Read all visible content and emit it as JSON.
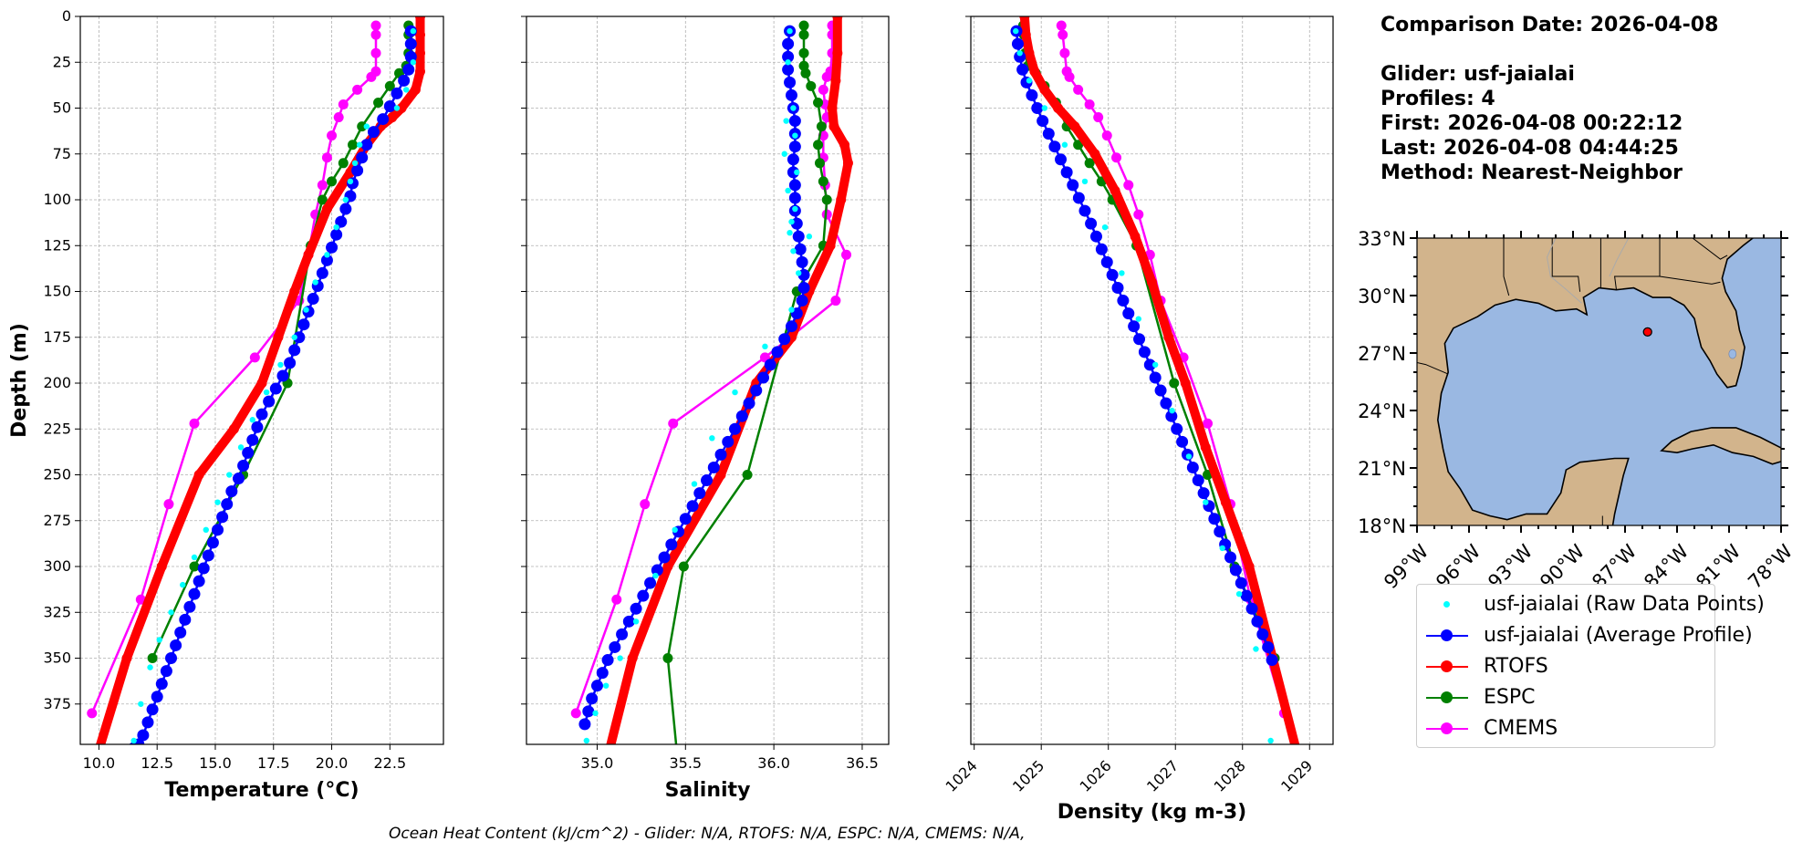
{
  "info": {
    "lines": [
      "Comparison Date: 2026-04-08",
      "",
      "Glider: usf-jaialai",
      "Profiles: 4",
      "First: 2026-04-08 00:22:12",
      "Last: 2026-04-08 04:44:25",
      "Method: Nearest-Neighbor"
    ]
  },
  "footer": "Ocean Heat Content (kJ/cm^2) - Glider: N/A,  RTOFS: N/A,  ESPC: N/A,  CMEMS: N/A,",
  "colors": {
    "raw": "#00ffff",
    "glider": "#0000ff",
    "rtofs": "#ff0000",
    "espc": "#008000",
    "cmems": "#ff00ff",
    "land": "#d2b48c",
    "water": "#9ab8e2"
  },
  "legend": [
    {
      "label": "usf-jaialai (Raw Data Points)",
      "color": "#00ffff",
      "style": "point"
    },
    {
      "label": "usf-jaialai (Average Profile)",
      "color": "#0000ff",
      "style": "line-marker"
    },
    {
      "label": "RTOFS",
      "color": "#ff0000",
      "style": "line-marker"
    },
    {
      "label": "ESPC",
      "color": "#008000",
      "style": "line-marker"
    },
    {
      "label": "CMEMS",
      "color": "#ff00ff",
      "style": "line-marker"
    }
  ],
  "map": {
    "lat_ticks": [
      "33°N",
      "30°N",
      "27°N",
      "24°N",
      "21°N",
      "18°N"
    ],
    "lon_ticks": [
      "99°W",
      "96°W",
      "93°W",
      "90°W",
      "87°W",
      "84°W",
      "81°W",
      "78°W"
    ],
    "extent": {
      "lon": [
        -99,
        -78
      ],
      "lat": [
        18,
        33
      ]
    },
    "glider_position": {
      "lon": -85.7,
      "lat": 28.1
    }
  },
  "chart_data": [
    {
      "type": "line",
      "xlabel": "Temperature (°C)",
      "ylabel": "Depth (m)",
      "xlim": [
        9.2,
        24.8
      ],
      "ylim": [
        397,
        0
      ],
      "xticks": [
        "10.0",
        "12.5",
        "15.0",
        "17.5",
        "20.0",
        "22.5"
      ],
      "xtick_values": [
        10,
        12.5,
        15,
        17.5,
        20,
        22.5
      ],
      "yticks": [
        "0",
        "25",
        "50",
        "75",
        "100",
        "125",
        "150",
        "175",
        "200",
        "225",
        "250",
        "275",
        "300",
        "325",
        "350",
        "375"
      ],
      "grid": true,
      "series": [
        {
          "name": "usf-jaialai (Raw Data Points)",
          "key": "raw",
          "x": [
            23.5,
            23.5,
            23.2,
            22.8,
            21.5,
            21.2,
            21.0,
            20.8,
            20.6,
            20.2,
            19.8,
            19.3,
            18.9,
            18.4,
            17.8,
            17.2,
            16.6,
            16.1,
            15.6,
            15.1,
            14.6,
            14.1,
            13.6,
            13.1,
            12.6,
            12.2,
            11.8,
            11.5
          ],
          "y": [
            8,
            25,
            40,
            50,
            60,
            70,
            80,
            90,
            100,
            115,
            130,
            145,
            160,
            175,
            190,
            205,
            220,
            235,
            250,
            265,
            280,
            295,
            310,
            325,
            340,
            355,
            375,
            395
          ]
        },
        {
          "name": "usf-jaialai (Average Profile)",
          "key": "glider",
          "x": [
            23.4,
            23.4,
            23.4,
            23.3,
            23.1,
            22.8,
            22.5,
            22.2,
            21.8,
            21.5,
            21.3,
            21.1,
            20.9,
            20.8,
            20.6,
            20.4,
            20.2,
            20.0,
            19.8,
            19.6,
            19.4,
            19.2,
            19.0,
            18.8,
            18.6,
            18.4,
            18.2,
            17.9,
            17.6,
            17.3,
            17.0,
            16.8,
            16.6,
            16.4,
            16.2,
            16.0,
            15.7,
            15.5,
            15.3,
            15.1,
            14.9,
            14.7,
            14.5,
            14.3,
            14.1,
            13.9,
            13.7,
            13.5,
            13.3,
            13.1,
            12.9,
            12.7,
            12.5,
            12.3,
            12.1,
            11.9,
            11.7,
            11.5,
            11.3
          ],
          "y": [
            8,
            15,
            22,
            29,
            35,
            42,
            49,
            56,
            63,
            70,
            77,
            84,
            91,
            98,
            105,
            112,
            119,
            126,
            133,
            140,
            147,
            154,
            161,
            168,
            175,
            182,
            189,
            196,
            203,
            210,
            217,
            224,
            231,
            238,
            245,
            252,
            259,
            266,
            273,
            280,
            287,
            294,
            301,
            308,
            315,
            322,
            329,
            336,
            343,
            350,
            357,
            364,
            371,
            378,
            385,
            392,
            397,
            399,
            401
          ]
        },
        {
          "name": "RTOFS",
          "key": "rtofs",
          "x": [
            23.8,
            23.8,
            23.8,
            23.8,
            23.6,
            23.0,
            22.6,
            22.1,
            21.5,
            20.8,
            19.8,
            19.0,
            18.4,
            17.7,
            17.0,
            15.8,
            14.3,
            12.7,
            11.2,
            10.0
          ],
          "y": [
            0,
            10,
            20,
            30,
            40,
            50,
            55,
            60,
            70,
            85,
            105,
            130,
            150,
            175,
            200,
            225,
            250,
            300,
            350,
            400
          ]
        },
        {
          "name": "ESPC",
          "key": "espc",
          "x": [
            23.3,
            23.3,
            23.3,
            23.2,
            22.9,
            22.5,
            22.0,
            21.3,
            20.9,
            20.5,
            20.0,
            19.6,
            19.1,
            18.1,
            16.2,
            14.1,
            12.3
          ],
          "y": [
            5,
            10,
            20,
            27,
            31,
            38,
            47,
            60,
            70,
            80,
            90,
            100,
            125,
            200,
            250,
            300,
            350
          ]
        },
        {
          "name": "CMEMS",
          "key": "cmems",
          "x": [
            21.9,
            21.9,
            21.9,
            21.9,
            21.7,
            21.1,
            20.5,
            20.3,
            20.0,
            19.8,
            19.6,
            19.3,
            19.0,
            18.6,
            16.7,
            14.1,
            13.0,
            11.8,
            9.7
          ],
          "y": [
            5,
            10,
            20,
            30,
            33,
            40,
            48,
            55,
            65,
            77,
            92,
            108,
            130,
            155,
            186,
            222,
            266,
            318,
            380
          ]
        }
      ]
    },
    {
      "type": "line",
      "xlabel": "Salinity",
      "ylabel": "",
      "xlim": [
        34.6,
        36.65
      ],
      "ylim": [
        397,
        0
      ],
      "xticks": [
        "35.0",
        "35.5",
        "36.0",
        "36.5"
      ],
      "xtick_values": [
        35.0,
        35.5,
        36.0,
        36.5
      ],
      "grid": true,
      "series": [
        {
          "name": "usf-jaialai (Raw Data Points)",
          "key": "raw",
          "x": [
            36.09,
            36.08,
            36.11,
            36.07,
            36.12,
            36.06,
            36.13,
            36.08,
            36.12,
            36.1,
            36.09,
            36.2,
            36.11,
            36.14,
            36.1,
            35.95,
            35.78,
            35.65,
            35.55,
            35.44,
            35.33,
            35.22,
            35.13,
            35.05,
            34.99,
            34.94
          ],
          "y": [
            8,
            25,
            50,
            57,
            65,
            75,
            85,
            95,
            105,
            112,
            118,
            120,
            128,
            140,
            160,
            180,
            205,
            230,
            255,
            280,
            305,
            330,
            350,
            365,
            380,
            395
          ]
        },
        {
          "name": "usf-jaialai (Average Profile)",
          "key": "glider",
          "x": [
            36.09,
            36.08,
            36.08,
            36.08,
            36.09,
            36.1,
            36.11,
            36.12,
            36.12,
            36.12,
            36.11,
            36.11,
            36.12,
            36.12,
            36.12,
            36.13,
            36.14,
            36.15,
            36.16,
            36.17,
            36.17,
            36.16,
            36.13,
            36.1,
            36.06,
            36.02,
            35.98,
            35.94,
            35.9,
            35.86,
            35.82,
            35.78,
            35.74,
            35.7,
            35.66,
            35.62,
            35.58,
            35.54,
            35.5,
            35.46,
            35.42,
            35.38,
            35.34,
            35.3,
            35.26,
            35.22,
            35.18,
            35.14,
            35.1,
            35.06,
            35.03,
            35.0,
            34.97,
            34.95,
            34.93
          ],
          "y": [
            8,
            15,
            22,
            29,
            36,
            43,
            50,
            57,
            64,
            71,
            78,
            85,
            92,
            99,
            106,
            113,
            120,
            127,
            134,
            141,
            148,
            155,
            162,
            169,
            176,
            183,
            190,
            197,
            204,
            211,
            218,
            225,
            232,
            239,
            246,
            253,
            260,
            267,
            274,
            281,
            288,
            295,
            302,
            309,
            316,
            323,
            330,
            337,
            344,
            351,
            358,
            365,
            372,
            379,
            386
          ]
        },
        {
          "name": "RTOFS",
          "key": "rtofs",
          "x": [
            36.36,
            36.36,
            36.35,
            36.33,
            36.34,
            36.4,
            36.42,
            36.38,
            36.32,
            36.2,
            36.1,
            35.9,
            35.7,
            35.4,
            35.2,
            35.07
          ],
          "y": [
            0,
            20,
            35,
            50,
            60,
            70,
            80,
            100,
            125,
            150,
            175,
            200,
            250,
            300,
            350,
            400
          ]
        },
        {
          "name": "ESPC",
          "key": "espc",
          "x": [
            36.17,
            36.17,
            36.17,
            36.17,
            36.18,
            36.21,
            36.25,
            36.27,
            36.25,
            36.26,
            36.28,
            36.3,
            36.28,
            36.13,
            35.85,
            35.49,
            35.4,
            35.45
          ],
          "y": [
            5,
            10,
            20,
            27,
            31,
            38,
            47,
            60,
            70,
            80,
            90,
            100,
            125,
            150,
            250,
            300,
            350,
            400
          ]
        },
        {
          "name": "CMEMS",
          "key": "cmems",
          "x": [
            36.33,
            36.33,
            36.33,
            36.32,
            36.3,
            36.28,
            36.29,
            36.3,
            36.28,
            36.28,
            36.29,
            36.3,
            36.41,
            36.35,
            35.95,
            35.43,
            35.27,
            35.11,
            34.88
          ],
          "y": [
            5,
            10,
            20,
            30,
            33,
            40,
            48,
            55,
            65,
            77,
            92,
            108,
            130,
            155,
            186,
            222,
            266,
            318,
            380
          ]
        }
      ]
    },
    {
      "type": "line",
      "xlabel": "Density (kg m-3)",
      "ylabel": "",
      "xlim": [
        1023.95,
        1029.35
      ],
      "ylim": [
        397,
        0
      ],
      "xticks": [
        "1024",
        "1025",
        "1026",
        "1027",
        "1028",
        "1029"
      ],
      "xtick_values": [
        1024,
        1025,
        1026,
        1027,
        1028,
        1029
      ],
      "grid": true,
      "series": [
        {
          "name": "usf-jaialai (Raw Data Points)",
          "key": "raw",
          "x": [
            1024.62,
            1024.68,
            1024.82,
            1025.05,
            1025.35,
            1025.65,
            1025.95,
            1026.2,
            1026.45,
            1026.7,
            1026.95,
            1027.2,
            1027.45,
            1027.7,
            1027.95,
            1028.2,
            1028.42
          ],
          "y": [
            8,
            20,
            35,
            50,
            70,
            90,
            115,
            140,
            165,
            190,
            215,
            240,
            265,
            290,
            315,
            345,
            395
          ]
        },
        {
          "name": "usf-jaialai (Average Profile)",
          "key": "glider",
          "x": [
            1024.63,
            1024.65,
            1024.68,
            1024.72,
            1024.78,
            1024.86,
            1024.94,
            1025.02,
            1025.11,
            1025.2,
            1025.29,
            1025.38,
            1025.47,
            1025.56,
            1025.65,
            1025.74,
            1025.82,
            1025.9,
            1025.98,
            1026.06,
            1026.14,
            1026.22,
            1026.3,
            1026.38,
            1026.46,
            1026.54,
            1026.62,
            1026.7,
            1026.78,
            1026.86,
            1026.94,
            1027.02,
            1027.1,
            1027.18,
            1027.26,
            1027.34,
            1027.42,
            1027.5,
            1027.58,
            1027.66,
            1027.74,
            1027.82,
            1027.9,
            1027.98,
            1028.06,
            1028.14,
            1028.22,
            1028.3,
            1028.38,
            1028.44
          ],
          "y": [
            8,
            15,
            22,
            29,
            36,
            43,
            50,
            57,
            64,
            71,
            78,
            85,
            92,
            99,
            106,
            113,
            120,
            127,
            134,
            141,
            148,
            155,
            162,
            169,
            176,
            183,
            190,
            197,
            204,
            211,
            218,
            225,
            232,
            239,
            246,
            253,
            260,
            267,
            274,
            281,
            288,
            295,
            302,
            309,
            316,
            323,
            330,
            337,
            344,
            351
          ]
        },
        {
          "name": "RTOFS",
          "key": "rtofs",
          "x": [
            1024.75,
            1024.77,
            1024.82,
            1024.9,
            1025.05,
            1025.25,
            1025.5,
            1025.8,
            1026.1,
            1026.4,
            1026.65,
            1026.9,
            1027.15,
            1027.45,
            1027.75,
            1028.1,
            1028.45,
            1028.8
          ],
          "y": [
            0,
            10,
            20,
            30,
            40,
            50,
            60,
            75,
            95,
            120,
            145,
            175,
            200,
            235,
            265,
            300,
            350,
            400
          ]
        },
        {
          "name": "ESPC",
          "key": "espc",
          "x": [
            1024.73,
            1024.74,
            1024.76,
            1024.8,
            1024.92,
            1025.05,
            1025.22,
            1025.38,
            1025.55,
            1025.72,
            1025.9,
            1026.06,
            1026.42,
            1026.98,
            1027.48,
            1027.88,
            1028.48,
            1028.82
          ],
          "y": [
            5,
            10,
            20,
            27,
            31,
            38,
            47,
            60,
            70,
            80,
            90,
            100,
            125,
            200,
            250,
            300,
            350,
            400
          ]
        },
        {
          "name": "CMEMS",
          "key": "cmems",
          "x": [
            1025.3,
            1025.32,
            1025.35,
            1025.38,
            1025.42,
            1025.55,
            1025.72,
            1025.85,
            1025.98,
            1026.12,
            1026.3,
            1026.45,
            1026.62,
            1026.78,
            1027.12,
            1027.48,
            1027.82,
            1028.12,
            1028.62
          ],
          "y": [
            5,
            10,
            20,
            30,
            33,
            40,
            48,
            55,
            65,
            77,
            92,
            108,
            130,
            155,
            186,
            222,
            266,
            318,
            380
          ]
        }
      ]
    }
  ]
}
